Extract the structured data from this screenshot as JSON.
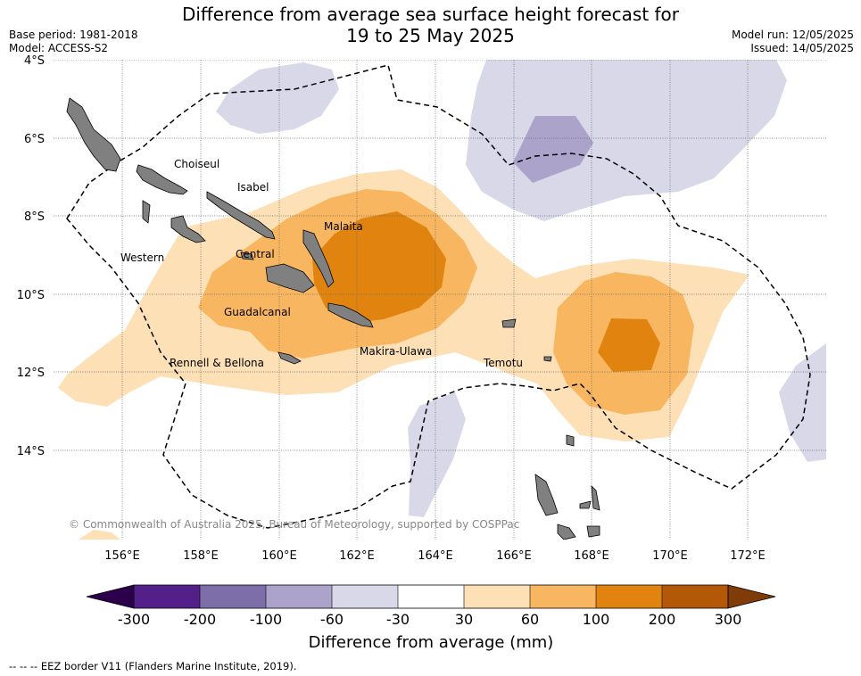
{
  "title": {
    "line1": "Difference from average sea surface height forecast for",
    "line2": "19 to 25 May 2025"
  },
  "meta_left": {
    "base_period": "Base period: 1981-2018",
    "model": "Model: ACCESS-S2"
  },
  "meta_right": {
    "model_run": "Model run: 12/05/2025",
    "issued": "Issued: 14/05/2025"
  },
  "map": {
    "lat_ticks": [
      "4°S",
      "6°S",
      "8°S",
      "10°S",
      "12°S",
      "14°S"
    ],
    "lon_ticks": [
      "156°E",
      "158°E",
      "160°E",
      "162°E",
      "164°E",
      "166°E",
      "168°E",
      "170°E",
      "172°E"
    ],
    "province_labels": [
      {
        "id": "choiseul",
        "text": "Choiseul"
      },
      {
        "id": "isabel",
        "text": "Isabel"
      },
      {
        "id": "malaita",
        "text": "Malaita"
      },
      {
        "id": "western",
        "text": "Western"
      },
      {
        "id": "central",
        "text": "Central"
      },
      {
        "id": "guadalcanal",
        "text": "Guadalcanal"
      },
      {
        "id": "rennell",
        "text": "Rennell & Bellona"
      },
      {
        "id": "makira",
        "text": "Makira-Ulawa"
      },
      {
        "id": "temotu",
        "text": "Temotu"
      }
    ],
    "copyright": "© Commonwealth of Australia 2025, Bureau of Meteorology, supported by COSPPac",
    "colors": {
      "neg_strong": "#aca3cb",
      "neg_light": "#d8d8e9",
      "pos_30_60": "#fde0b6",
      "pos_60_100": "#f9b660",
      "pos_100_200": "#e0840f",
      "land": "#808080"
    }
  },
  "colorbar": {
    "ticks": [
      "-300",
      "-200",
      "-100",
      "-60",
      "-30",
      "30",
      "60",
      "100",
      "200",
      "300"
    ],
    "colors": [
      "#531f88",
      "#7d6ea9",
      "#aca3cb",
      "#d8d8e9",
      "#ffffff",
      "#fde0b6",
      "#f9b660",
      "#e0840f",
      "#b35806"
    ],
    "under_color": "#2d004b",
    "over_color": "#7f3b08",
    "label": "Difference from average (mm)"
  },
  "footer": {
    "eez_text": "--  --  -- EEZ border V11 (Flanders Marine Institute, 2019)."
  }
}
